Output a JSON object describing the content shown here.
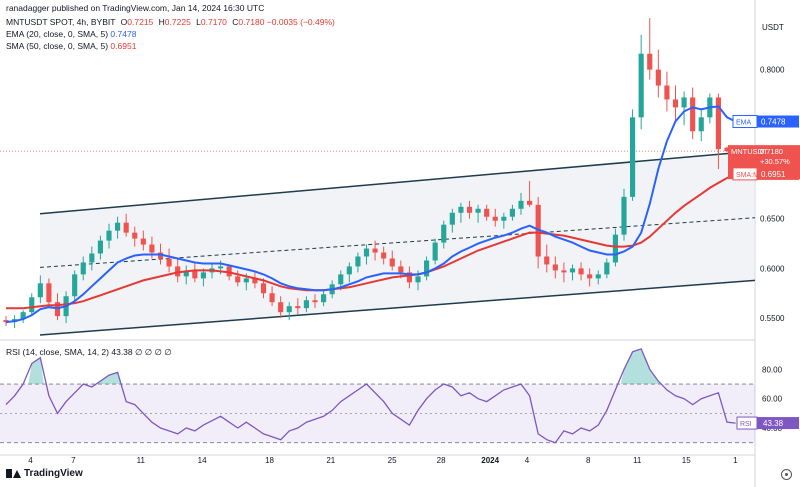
{
  "header": {
    "author": "ranadagger",
    "published": "published on TradingView.com, Jan 14, 2024 16:30 UTC",
    "symbol": "MNTUSDT SPOT, 4h, BYBIT",
    "o_label": "O",
    "o": "0.7215",
    "h_label": "H",
    "h": "0.7225",
    "l_label": "L",
    "l": "0.7170",
    "c_label": "C",
    "c": "0.7180",
    "change": "−0.0035 (−0.49%)",
    "ema_label": "EMA (20, close, 0, SMA, 5)",
    "ema_value": "0.7478",
    "sma_label": "SMA (50, close, 0, SMA, 5)",
    "sma_value": "0.6951",
    "rsi_label": "RSI (14, close, SMA, 14, 2)",
    "rsi_values": "43.38 ∅ ∅ ∅ ∅"
  },
  "footer": {
    "logo_text": "TradingView"
  },
  "chart_data": [
    {
      "type": "candlestick",
      "currency": "USDT",
      "x_ticks": [
        "4",
        "7",
        "11",
        "14",
        "18",
        "21",
        "25",
        "28",
        "2024",
        "4",
        "8",
        "11",
        "15",
        "1"
      ],
      "y_ticks": [
        "0.5500",
        "0.6000",
        "0.6500",
        "0.8000"
      ],
      "ylim": [
        0.53,
        0.86
      ],
      "color_up": "#26a69a",
      "color_down": "#ef5350",
      "ohlc": [
        [
          0.548,
          0.552,
          0.542,
          0.546
        ],
        [
          0.546,
          0.553,
          0.54,
          0.549
        ],
        [
          0.549,
          0.558,
          0.545,
          0.556
        ],
        [
          0.556,
          0.575,
          0.552,
          0.571
        ],
        [
          0.571,
          0.593,
          0.565,
          0.585
        ],
        [
          0.585,
          0.59,
          0.56,
          0.566
        ],
        [
          0.566,
          0.575,
          0.548,
          0.552
        ],
        [
          0.552,
          0.577,
          0.545,
          0.572
        ],
        [
          0.572,
          0.598,
          0.566,
          0.594
        ],
        [
          0.594,
          0.612,
          0.588,
          0.606
        ],
        [
          0.606,
          0.622,
          0.598,
          0.615
        ],
        [
          0.615,
          0.633,
          0.609,
          0.628
        ],
        [
          0.628,
          0.645,
          0.62,
          0.638
        ],
        [
          0.638,
          0.652,
          0.63,
          0.646
        ],
        [
          0.646,
          0.655,
          0.632,
          0.636
        ],
        [
          0.636,
          0.642,
          0.622,
          0.63
        ],
        [
          0.63,
          0.638,
          0.618,
          0.624
        ],
        [
          0.624,
          0.632,
          0.61,
          0.616
        ],
        [
          0.616,
          0.625,
          0.604,
          0.61
        ],
        [
          0.61,
          0.62,
          0.596,
          0.602
        ],
        [
          0.602,
          0.61,
          0.586,
          0.592
        ],
        [
          0.592,
          0.603,
          0.584,
          0.598
        ],
        [
          0.598,
          0.606,
          0.586,
          0.59
        ],
        [
          0.59,
          0.6,
          0.582,
          0.596
        ],
        [
          0.596,
          0.606,
          0.59,
          0.6
        ],
        [
          0.6,
          0.608,
          0.594,
          0.602
        ],
        [
          0.602,
          0.604,
          0.588,
          0.592
        ],
        [
          0.592,
          0.598,
          0.582,
          0.586
        ],
        [
          0.586,
          0.595,
          0.578,
          0.59
        ],
        [
          0.59,
          0.597,
          0.58,
          0.585
        ],
        [
          0.585,
          0.59,
          0.57,
          0.575
        ],
        [
          0.575,
          0.582,
          0.562,
          0.566
        ],
        [
          0.566,
          0.572,
          0.55,
          0.556
        ],
        [
          0.556,
          0.566,
          0.548,
          0.562
        ],
        [
          0.562,
          0.57,
          0.554,
          0.56
        ],
        [
          0.56,
          0.572,
          0.556,
          0.568
        ],
        [
          0.568,
          0.574,
          0.56,
          0.566
        ],
        [
          0.566,
          0.578,
          0.562,
          0.574
        ],
        [
          0.574,
          0.588,
          0.57,
          0.584
        ],
        [
          0.584,
          0.598,
          0.578,
          0.594
        ],
        [
          0.594,
          0.606,
          0.586,
          0.602
        ],
        [
          0.602,
          0.616,
          0.596,
          0.612
        ],
        [
          0.612,
          0.624,
          0.604,
          0.62
        ],
        [
          0.62,
          0.628,
          0.608,
          0.616
        ],
        [
          0.616,
          0.622,
          0.604,
          0.61
        ],
        [
          0.61,
          0.618,
          0.598,
          0.602
        ],
        [
          0.602,
          0.608,
          0.59,
          0.596
        ],
        [
          0.596,
          0.602,
          0.58,
          0.586
        ],
        [
          0.586,
          0.598,
          0.578,
          0.592
        ],
        [
          0.592,
          0.612,
          0.588,
          0.608
        ],
        [
          0.608,
          0.63,
          0.604,
          0.626
        ],
        [
          0.626,
          0.648,
          0.62,
          0.644
        ],
        [
          0.644,
          0.66,
          0.636,
          0.656
        ],
        [
          0.656,
          0.666,
          0.646,
          0.662
        ],
        [
          0.662,
          0.668,
          0.65,
          0.656
        ],
        [
          0.656,
          0.664,
          0.646,
          0.66
        ],
        [
          0.66,
          0.664,
          0.648,
          0.652
        ],
        [
          0.652,
          0.66,
          0.642,
          0.648
        ],
        [
          0.648,
          0.656,
          0.64,
          0.652
        ],
        [
          0.652,
          0.664,
          0.648,
          0.66
        ],
        [
          0.66,
          0.676,
          0.654,
          0.668
        ],
        [
          0.668,
          0.688,
          0.662,
          0.664
        ],
        [
          0.664,
          0.672,
          0.6,
          0.612
        ],
        [
          0.612,
          0.624,
          0.596,
          0.604
        ],
        [
          0.604,
          0.612,
          0.59,
          0.598
        ],
        [
          0.598,
          0.606,
          0.586,
          0.596
        ],
        [
          0.596,
          0.604,
          0.588,
          0.6
        ],
        [
          0.6,
          0.606,
          0.588,
          0.594
        ],
        [
          0.594,
          0.6,
          0.582,
          0.59
        ],
        [
          0.59,
          0.598,
          0.584,
          0.594
        ],
        [
          0.594,
          0.61,
          0.59,
          0.606
        ],
        [
          0.606,
          0.64,
          0.602,
          0.634
        ],
        [
          0.634,
          0.68,
          0.628,
          0.672
        ],
        [
          0.672,
          0.76,
          0.668,
          0.752
        ],
        [
          0.752,
          0.835,
          0.74,
          0.816
        ],
        [
          0.816,
          0.852,
          0.79,
          0.8
        ],
        [
          0.8,
          0.82,
          0.772,
          0.784
        ],
        [
          0.784,
          0.798,
          0.758,
          0.77
        ],
        [
          0.77,
          0.784,
          0.748,
          0.762
        ],
        [
          0.762,
          0.778,
          0.744,
          0.772
        ],
        [
          0.772,
          0.782,
          0.73,
          0.738
        ],
        [
          0.738,
          0.76,
          0.728,
          0.752
        ],
        [
          0.752,
          0.776,
          0.746,
          0.772
        ],
        [
          0.772,
          0.776,
          0.7,
          0.72
        ],
        [
          0.7215,
          0.7225,
          0.717,
          0.718
        ]
      ],
      "ema": [
        0.546,
        0.547,
        0.549,
        0.553,
        0.559,
        0.561,
        0.56,
        0.562,
        0.567,
        0.574,
        0.582,
        0.59,
        0.598,
        0.606,
        0.61,
        0.613,
        0.614,
        0.614,
        0.614,
        0.612,
        0.61,
        0.608,
        0.606,
        0.605,
        0.605,
        0.605,
        0.603,
        0.601,
        0.599,
        0.597,
        0.594,
        0.59,
        0.585,
        0.582,
        0.58,
        0.579,
        0.578,
        0.578,
        0.579,
        0.581,
        0.584,
        0.587,
        0.591,
        0.593,
        0.595,
        0.595,
        0.595,
        0.594,
        0.594,
        0.596,
        0.6,
        0.605,
        0.612,
        0.617,
        0.621,
        0.625,
        0.628,
        0.631,
        0.633,
        0.636,
        0.64,
        0.643,
        0.639,
        0.636,
        0.632,
        0.629,
        0.626,
        0.622,
        0.618,
        0.616,
        0.614,
        0.614,
        0.617,
        0.622,
        0.636,
        0.665,
        0.7,
        0.728,
        0.748,
        0.758,
        0.762,
        0.76,
        0.762,
        0.763,
        0.752,
        0.7478
      ],
      "sma": [
        0.56,
        0.56,
        0.56,
        0.561,
        0.562,
        0.563,
        0.563,
        0.564,
        0.565,
        0.567,
        0.57,
        0.573,
        0.576,
        0.579,
        0.582,
        0.585,
        0.588,
        0.59,
        0.592,
        0.594,
        0.596,
        0.597,
        0.598,
        0.598,
        0.598,
        0.597,
        0.596,
        0.594,
        0.592,
        0.59,
        0.588,
        0.585,
        0.582,
        0.58,
        0.579,
        0.578,
        0.578,
        0.578,
        0.579,
        0.58,
        0.581,
        0.583,
        0.585,
        0.587,
        0.589,
        0.591,
        0.592,
        0.593,
        0.594,
        0.596,
        0.599,
        0.602,
        0.606,
        0.61,
        0.614,
        0.618,
        0.621,
        0.624,
        0.627,
        0.63,
        0.633,
        0.636,
        0.636,
        0.635,
        0.634,
        0.633,
        0.631,
        0.629,
        0.627,
        0.625,
        0.623,
        0.622,
        0.622,
        0.623,
        0.626,
        0.632,
        0.64,
        0.648,
        0.656,
        0.663,
        0.669,
        0.675,
        0.681,
        0.686,
        0.691,
        0.6951
      ],
      "channel": {
        "upper": [
          [
            0.655,
            0
          ],
          [
            0.718,
            85
          ]
        ],
        "middle": [
          [
            0.601,
            0
          ],
          [
            0.651,
            85
          ]
        ],
        "lower": [
          [
            0.533,
            0
          ],
          [
            0.588,
            85
          ]
        ]
      },
      "price_labels": [
        {
          "label": "EMA",
          "value": "0.7478",
          "color": "#2962ff"
        },
        {
          "label": "MNTUSDT",
          "value": "0.7180",
          "sub1": "+30.57%",
          "sub2": "03:29:10",
          "color": "#ef5350"
        },
        {
          "label": "SMA:MA",
          "value": "0.6951",
          "color": "#ef5350"
        }
      ]
    },
    {
      "type": "line",
      "name": "RSI",
      "y_ticks": [
        "80.00",
        "60.00",
        "40.00"
      ],
      "ylim": [
        25,
        98
      ],
      "band": [
        30,
        70
      ],
      "last_label": "RSI",
      "last_value": "43.38",
      "values": [
        56,
        62,
        70,
        84,
        88,
        62,
        50,
        58,
        64,
        70,
        68,
        72,
        76,
        78,
        58,
        56,
        50,
        44,
        40,
        38,
        36,
        40,
        38,
        42,
        45,
        48,
        44,
        40,
        44,
        40,
        36,
        34,
        32,
        38,
        40,
        44,
        46,
        48,
        52,
        58,
        62,
        66,
        70,
        64,
        58,
        50,
        46,
        42,
        52,
        60,
        66,
        70,
        68,
        62,
        64,
        60,
        58,
        62,
        66,
        68,
        70,
        62,
        36,
        32,
        30,
        38,
        36,
        40,
        38,
        42,
        52,
        66,
        80,
        92,
        94,
        80,
        72,
        66,
        62,
        60,
        56,
        60,
        62,
        64,
        44,
        43.38
      ]
    }
  ]
}
